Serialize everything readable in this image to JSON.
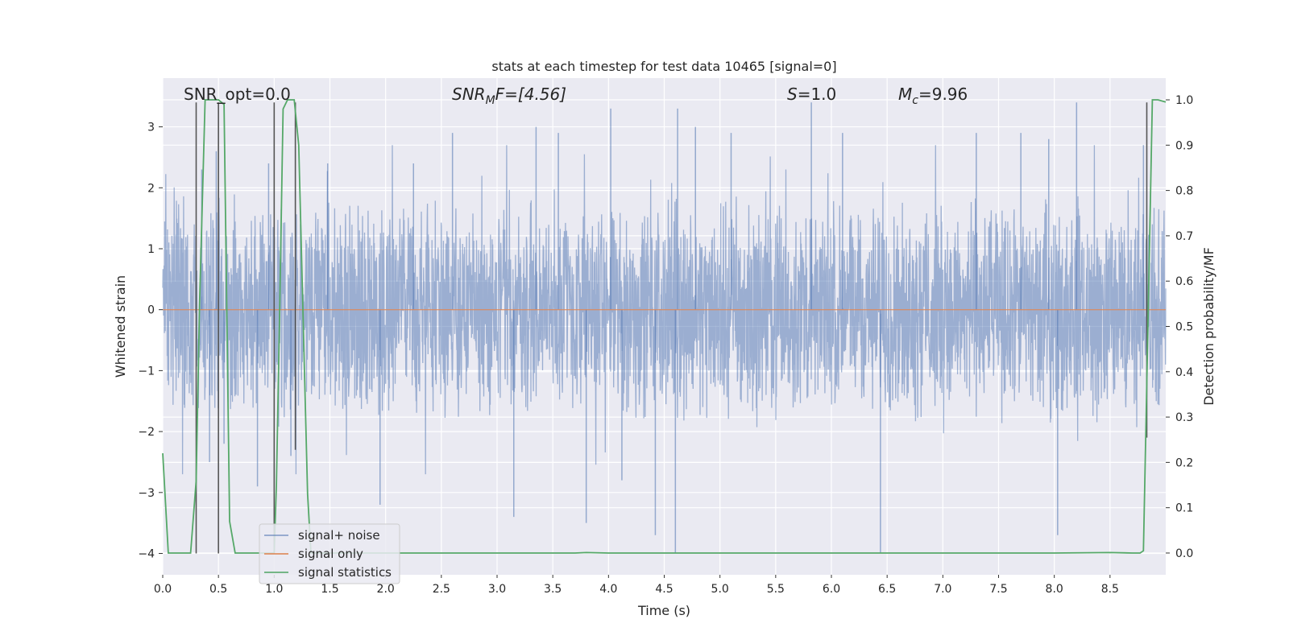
{
  "chart_data": {
    "type": "line",
    "title": "stats at each timestep for test data 10465 [signal=0]",
    "xlabel": "Time (s)",
    "ylabel": "Whitened strain",
    "y2label": "Detection probability/MF",
    "xlim": [
      0.0,
      9.0
    ],
    "ylim": [
      -4.35,
      3.8
    ],
    "y2lim": [
      -0.048,
      1.048
    ],
    "xticks": [
      "0.0",
      "0.5",
      "1.0",
      "1.5",
      "2.0",
      "2.5",
      "3.0",
      "3.5",
      "4.0",
      "4.5",
      "5.0",
      "5.5",
      "6.0",
      "6.5",
      "7.0",
      "7.5",
      "8.0",
      "8.5"
    ],
    "xtick_values": [
      0.0,
      0.5,
      1.0,
      1.5,
      2.0,
      2.5,
      3.0,
      3.5,
      4.0,
      4.5,
      5.0,
      5.5,
      6.0,
      6.5,
      7.0,
      7.5,
      8.0,
      8.5
    ],
    "yticks": [
      "−4",
      "−3",
      "−2",
      "−1",
      "0",
      "1",
      "2",
      "3"
    ],
    "ytick_values": [
      -4,
      -3,
      -2,
      -1,
      0,
      1,
      2,
      3
    ],
    "y2ticks": [
      "0.0",
      "0.1",
      "0.2",
      "0.3",
      "0.4",
      "0.5",
      "0.6",
      "0.7",
      "0.8",
      "0.9",
      "1.0"
    ],
    "y2tick_values": [
      0.0,
      0.1,
      0.2,
      0.3,
      0.4,
      0.5,
      0.6,
      0.7,
      0.8,
      0.9,
      1.0
    ],
    "annotations": {
      "snr_opt": "SNR_opt=0.0",
      "snr_mf_main": "SNR",
      "snr_mf_sub": "M",
      "snr_mf_rest": "F=[4.56]",
      "s_main": "S",
      "s_rest": "=1.0",
      "mc_main": "M",
      "mc_sub": "c",
      "mc_rest": "=9.96"
    },
    "grid": true,
    "legend_position": "lower-left",
    "series": [
      {
        "name": "signal+ noise",
        "color": "#4c72b0",
        "note": "noise envelope, approx. ±1.8 with spikes",
        "spikes": [
          [
            0.35,
            2.3
          ],
          [
            0.42,
            -2.5
          ],
          [
            0.48,
            2.6
          ],
          [
            0.55,
            -2.2
          ],
          [
            0.85,
            -2.9
          ],
          [
            0.95,
            2.4
          ],
          [
            1.15,
            -2.4
          ],
          [
            1.48,
            2.4
          ],
          [
            1.95,
            -3.2
          ],
          [
            2.25,
            2.4
          ],
          [
            2.6,
            2.9
          ],
          [
            3.15,
            -3.4
          ],
          [
            3.35,
            3.0
          ],
          [
            3.55,
            2.9
          ],
          [
            3.8,
            -3.5
          ],
          [
            4.02,
            3.3
          ],
          [
            4.12,
            -2.8
          ],
          [
            4.42,
            -3.7
          ],
          [
            4.6,
            -4.0
          ],
          [
            4.62,
            3.3
          ],
          [
            4.78,
            3.0
          ],
          [
            5.1,
            2.9
          ],
          [
            5.82,
            3.4
          ],
          [
            6.1,
            2.9
          ],
          [
            6.44,
            -4.0
          ],
          [
            7.3,
            2.9
          ],
          [
            7.7,
            2.9
          ],
          [
            7.95,
            2.8
          ],
          [
            8.03,
            -3.7
          ],
          [
            8.2,
            3.4
          ],
          [
            8.8,
            2.7
          ]
        ]
      },
      {
        "name": "signal only",
        "color": "#dd8452",
        "x": [
          0.0,
          9.0
        ],
        "y": [
          0.0,
          0.0
        ]
      },
      {
        "name": "signal statistics",
        "color": "#55a868",
        "axis": "right",
        "x": [
          0.0,
          0.05,
          0.1,
          0.15,
          0.2,
          0.25,
          0.3,
          0.33,
          0.38,
          0.45,
          0.5,
          0.55,
          0.6,
          0.65,
          0.7,
          0.75,
          0.8,
          0.85,
          0.9,
          0.95,
          1.0,
          1.02,
          1.05,
          1.08,
          1.12,
          1.18,
          1.22,
          1.3,
          1.33,
          1.4,
          1.5,
          2.0,
          3.0,
          3.7,
          3.8,
          4.0,
          5.0,
          6.0,
          7.0,
          8.0,
          8.5,
          8.7,
          8.77,
          8.8,
          8.84,
          8.88,
          8.93,
          9.0
        ],
        "y": [
          0.22,
          0.0,
          0.0,
          0.0,
          0.0,
          0.0,
          0.16,
          0.55,
          1.0,
          1.0,
          1.0,
          0.99,
          0.07,
          0.0,
          0.0,
          0.0,
          0.0,
          0.0,
          0.0,
          0.0,
          0.0,
          0.15,
          0.55,
          0.98,
          1.0,
          1.0,
          0.9,
          0.13,
          0.0,
          0.0,
          0.0,
          0.0,
          0.0,
          0.0,
          0.001,
          0.0,
          0.0,
          0.0,
          0.0,
          0.0,
          0.001,
          0.0,
          0.0,
          0.005,
          0.5,
          1.0,
          1.0,
          0.995
        ]
      }
    ],
    "vertical_lines": {
      "color": "#555555",
      "x": [
        0.3,
        0.5,
        1.0,
        1.19,
        8.83
      ],
      "y_top": [
        3.4,
        3.4,
        3.4,
        3.4,
        3.4
      ],
      "y_bottom": [
        -4.0,
        -4.0,
        -4.0,
        -2.3,
        -2.1
      ]
    }
  }
}
